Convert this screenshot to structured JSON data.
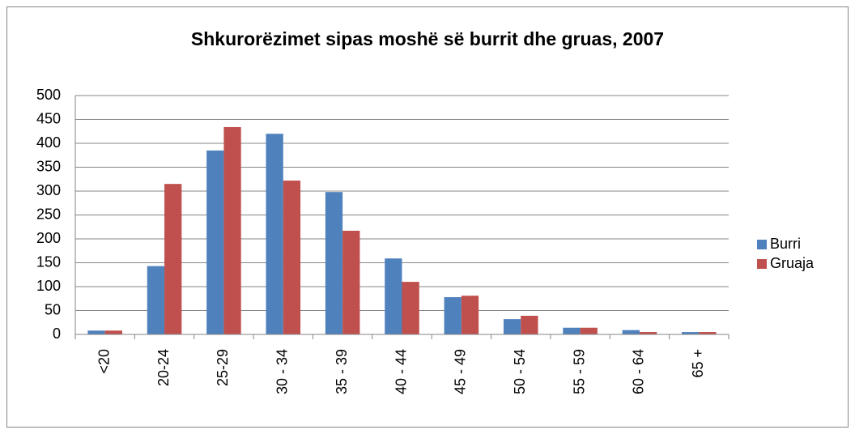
{
  "chart_data": {
    "type": "bar",
    "title": "Shkurorëzimet sipas moshë së burrit dhe gruas, 2007",
    "categories": [
      "<20",
      "20-24",
      "25-29",
      "30 - 34",
      "35 - 39",
      "40 - 44",
      "45 - 49",
      "50 - 54",
      "55 - 59",
      "60 - 64",
      "65 +"
    ],
    "series": [
      {
        "name": "Burri",
        "color": "#4f81bd",
        "values": [
          8,
          143,
          385,
          420,
          298,
          159,
          78,
          32,
          14,
          9,
          5
        ]
      },
      {
        "name": "Gruaja",
        "color": "#c0504d",
        "values": [
          8,
          315,
          434,
          322,
          217,
          110,
          81,
          39,
          14,
          5,
          5
        ]
      }
    ],
    "ylim": [
      0,
      500
    ],
    "yticks": [
      0,
      50,
      100,
      150,
      200,
      250,
      300,
      350,
      400,
      450,
      500
    ],
    "grid": true,
    "legend": "right"
  }
}
